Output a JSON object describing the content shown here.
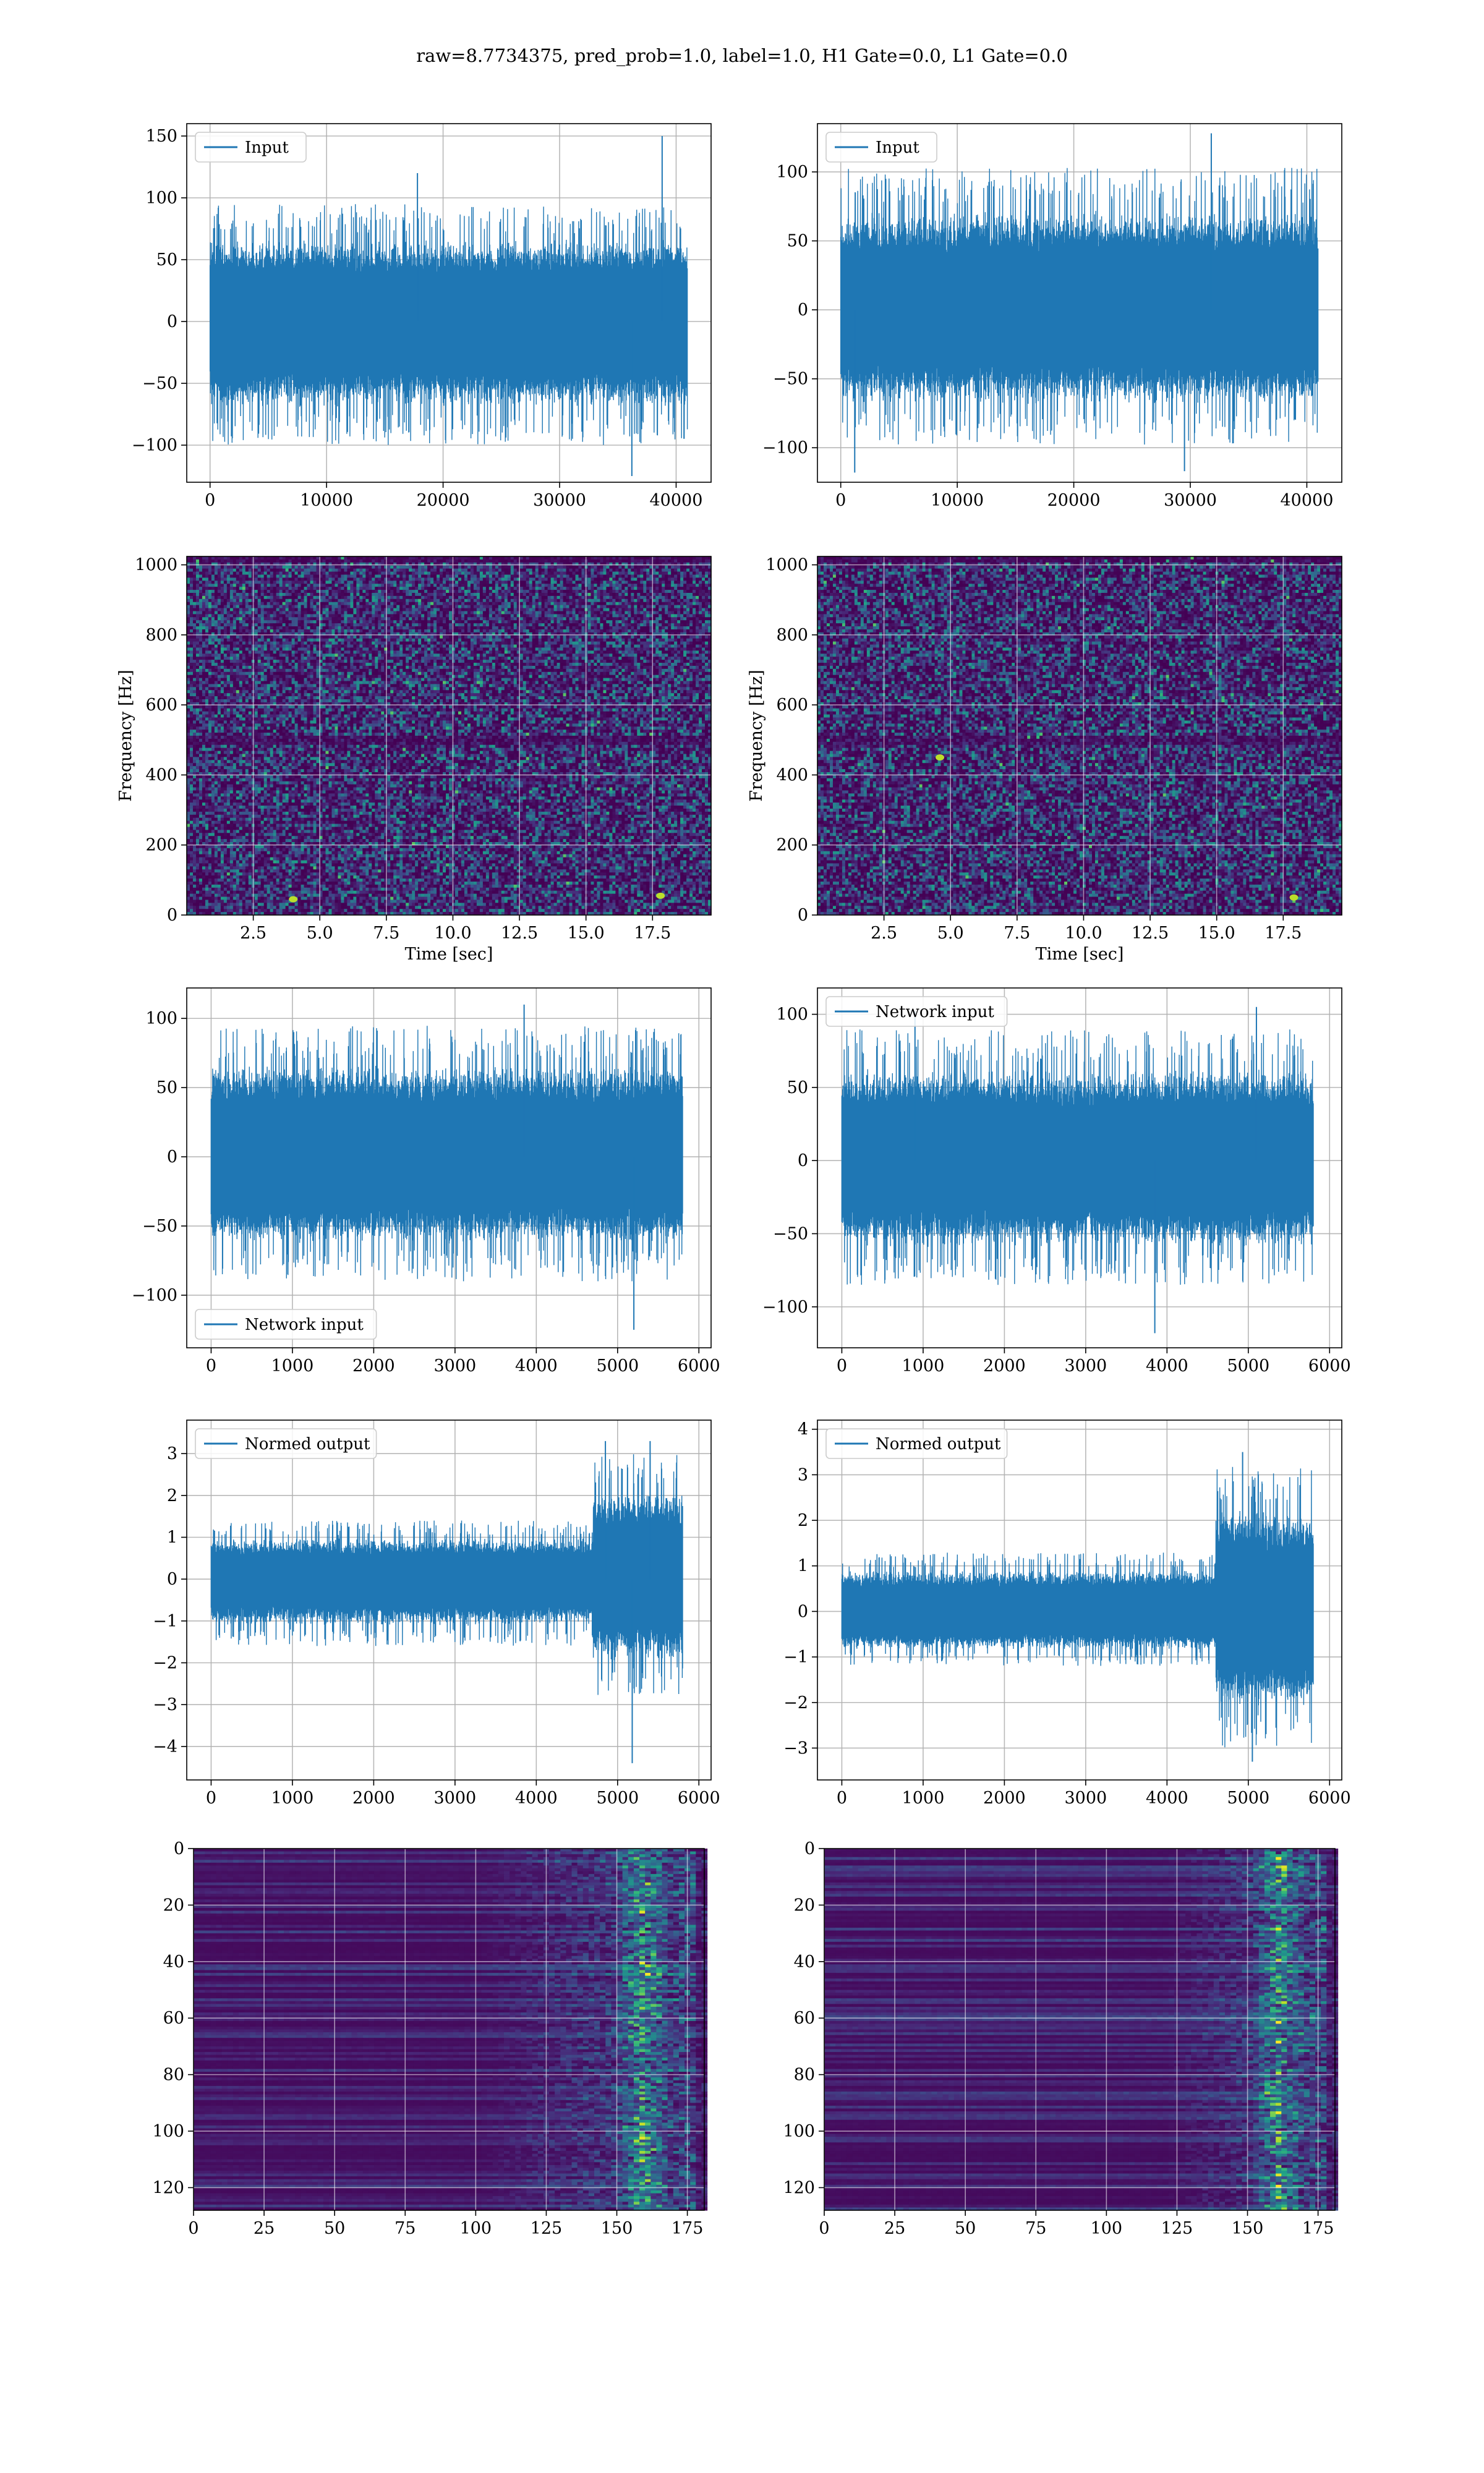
{
  "figure": {
    "title": "raw=8.7734375, pred_prob=1.0, label=1.0, H1 Gate=0.0, L1 Gate=0.0",
    "series_color": "#1f77b4",
    "colormap": "viridis"
  },
  "chart_data": [
    {
      "id": "h1-input",
      "type": "line",
      "legend": "Input",
      "legend_loc": "upper left",
      "xlim": [
        -2000,
        43000
      ],
      "ylim": [
        -130,
        160
      ],
      "xticks": [
        0,
        10000,
        20000,
        30000,
        40000
      ],
      "yticks": [
        -100,
        -50,
        0,
        50,
        100,
        150
      ],
      "grid": true,
      "n_points": 40960,
      "x_range": [
        0,
        40960
      ],
      "envelope_segments": [
        {
          "x": [
            0,
            40960
          ],
          "min": [
            -100,
            -100
          ],
          "max": [
            95,
            95
          ]
        }
      ],
      "spikes": [
        {
          "x": 38800,
          "y": 150
        },
        {
          "x": 36200,
          "y": -125
        },
        {
          "x": 17800,
          "y": 120
        }
      ]
    },
    {
      "id": "l1-input",
      "type": "line",
      "legend": "Input",
      "legend_loc": "upper left",
      "xlim": [
        -2000,
        43000
      ],
      "ylim": [
        -125,
        135
      ],
      "xticks": [
        0,
        10000,
        20000,
        30000,
        40000
      ],
      "yticks": [
        -100,
        -50,
        0,
        50,
        100
      ],
      "grid": true,
      "n_points": 40960,
      "x_range": [
        0,
        40960
      ],
      "envelope_segments": [
        {
          "x": [
            0,
            40960
          ],
          "min": [
            -98,
            -98
          ],
          "max": [
            103,
            103
          ]
        }
      ],
      "spikes": [
        {
          "x": 31800,
          "y": 128
        },
        {
          "x": 1200,
          "y": -118
        },
        {
          "x": 29500,
          "y": -117
        }
      ]
    },
    {
      "id": "h1-spectrogram",
      "type": "heatmap",
      "xlim": [
        0,
        19.7
      ],
      "ylim": [
        0,
        1024
      ],
      "xticks": [
        2.5,
        5.0,
        7.5,
        10.0,
        12.5,
        15.0,
        17.5
      ],
      "yticks": [
        0,
        200,
        400,
        600,
        800,
        1000
      ],
      "xlabel": "Time [sec]",
      "ylabel": "Frequency [Hz]",
      "grid": true,
      "bright_spots": [
        {
          "x": 4.0,
          "y": 45
        },
        {
          "x": 17.8,
          "y": 55
        }
      ],
      "dark_band_hz": 500
    },
    {
      "id": "l1-spectrogram",
      "type": "heatmap",
      "xlim": [
        0,
        19.7
      ],
      "ylim": [
        0,
        1024
      ],
      "xticks": [
        2.5,
        5.0,
        7.5,
        10.0,
        12.5,
        15.0,
        17.5
      ],
      "yticks": [
        0,
        200,
        400,
        600,
        800,
        1000
      ],
      "xlabel": "Time [sec]",
      "ylabel": "Frequency [Hz]",
      "grid": true,
      "bright_spots": [
        {
          "x": 17.9,
          "y": 50
        },
        {
          "x": 4.6,
          "y": 450
        }
      ],
      "dark_band_hz": 500
    },
    {
      "id": "h1-network-input",
      "type": "line",
      "legend": "Network input",
      "legend_loc": "lower left",
      "xlim": [
        -300,
        6150
      ],
      "ylim": [
        -138,
        122
      ],
      "xticks": [
        0,
        1000,
        2000,
        3000,
        4000,
        5000,
        6000
      ],
      "yticks": [
        -100,
        -50,
        0,
        50,
        100
      ],
      "grid": true,
      "n_points": 5800,
      "x_range": [
        0,
        5800
      ],
      "envelope_segments": [
        {
          "x": [
            0,
            5800
          ],
          "min": [
            -90,
            -90
          ],
          "max": [
            95,
            95
          ]
        }
      ],
      "spikes": [
        {
          "x": 5200,
          "y": -125
        },
        {
          "x": 3850,
          "y": 110
        }
      ]
    },
    {
      "id": "l1-network-input",
      "type": "line",
      "legend": "Network input",
      "legend_loc": "upper left",
      "xlim": [
        -300,
        6150
      ],
      "ylim": [
        -128,
        118
      ],
      "xticks": [
        0,
        1000,
        2000,
        3000,
        4000,
        5000,
        6000
      ],
      "yticks": [
        -100,
        -50,
        0,
        50,
        100
      ],
      "grid": true,
      "n_points": 5800,
      "x_range": [
        0,
        5800
      ],
      "envelope_segments": [
        {
          "x": [
            0,
            5800
          ],
          "min": [
            -85,
            -85
          ],
          "max": [
            90,
            90
          ]
        }
      ],
      "spikes": [
        {
          "x": 3850,
          "y": -118
        },
        {
          "x": 5100,
          "y": 105
        },
        {
          "x": 900,
          "y": 102
        }
      ]
    },
    {
      "id": "h1-normed-output",
      "type": "line",
      "legend": "Normed output",
      "legend_loc": "upper left",
      "xlim": [
        -300,
        6150
      ],
      "ylim": [
        -4.8,
        3.8
      ],
      "xticks": [
        0,
        1000,
        2000,
        3000,
        4000,
        5000,
        6000
      ],
      "yticks": [
        -4,
        -3,
        -2,
        -1,
        0,
        1,
        2,
        3
      ],
      "grid": true,
      "n_points": 5800,
      "x_range": [
        0,
        5800
      ],
      "envelope_segments": [
        {
          "x": [
            0,
            4700
          ],
          "min": [
            -1.6,
            -1.6
          ],
          "max": [
            1.4,
            1.4
          ]
        },
        {
          "x": [
            4700,
            5800
          ],
          "min": [
            -2.8,
            -2.8
          ],
          "max": [
            3.0,
            3.0
          ]
        }
      ],
      "spikes": [
        {
          "x": 5180,
          "y": -4.4
        },
        {
          "x": 4850,
          "y": 3.3
        },
        {
          "x": 5400,
          "y": 3.3
        }
      ]
    },
    {
      "id": "l1-normed-output",
      "type": "line",
      "legend": "Normed output",
      "legend_loc": "upper left",
      "xlim": [
        -300,
        6150
      ],
      "ylim": [
        -3.7,
        4.2
      ],
      "xticks": [
        0,
        1000,
        2000,
        3000,
        4000,
        5000,
        6000
      ],
      "yticks": [
        -3,
        -2,
        -1,
        0,
        1,
        2,
        3,
        4
      ],
      "grid": true,
      "n_points": 5800,
      "x_range": [
        0,
        5800
      ],
      "envelope_segments": [
        {
          "x": [
            0,
            4600
          ],
          "min": [
            -1.2,
            -1.2
          ],
          "max": [
            1.3,
            1.3
          ]
        },
        {
          "x": [
            4600,
            5800
          ],
          "min": [
            -3.0,
            -3.0
          ],
          "max": [
            3.2,
            3.2
          ]
        }
      ],
      "spikes": [
        {
          "x": 4930,
          "y": 3.5
        },
        {
          "x": 5050,
          "y": -3.3
        }
      ]
    },
    {
      "id": "h1-output-map",
      "type": "heatmap",
      "xlim": [
        0,
        181
      ],
      "ylim": [
        128,
        0
      ],
      "y_inverted": true,
      "xticks": [
        0,
        25,
        50,
        75,
        100,
        125,
        150,
        175
      ],
      "yticks": [
        0,
        20,
        40,
        60,
        80,
        100,
        120
      ],
      "grid": true,
      "activity_start_col": 100,
      "peak_col": 158
    },
    {
      "id": "l1-output-map",
      "type": "heatmap",
      "xlim": [
        0,
        181
      ],
      "ylim": [
        128,
        0
      ],
      "y_inverted": true,
      "xticks": [
        0,
        25,
        50,
        75,
        100,
        125,
        150,
        175
      ],
      "yticks": [
        0,
        20,
        40,
        60,
        80,
        100,
        120
      ],
      "grid": true,
      "activity_start_col": 120,
      "peak_col": 160
    }
  ]
}
